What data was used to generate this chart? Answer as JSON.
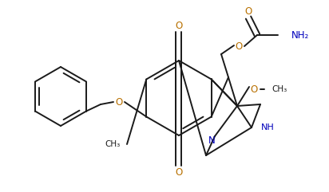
{
  "bg": "#ffffff",
  "lc": "#1a1a1a",
  "Oc": "#b87000",
  "Nc": "#0000bb",
  "lw": 1.4,
  "figsize": [
    4.12,
    2.41
  ],
  "dpi": 100,
  "xlim": [
    0,
    412
  ],
  "ylim": [
    0,
    241
  ]
}
